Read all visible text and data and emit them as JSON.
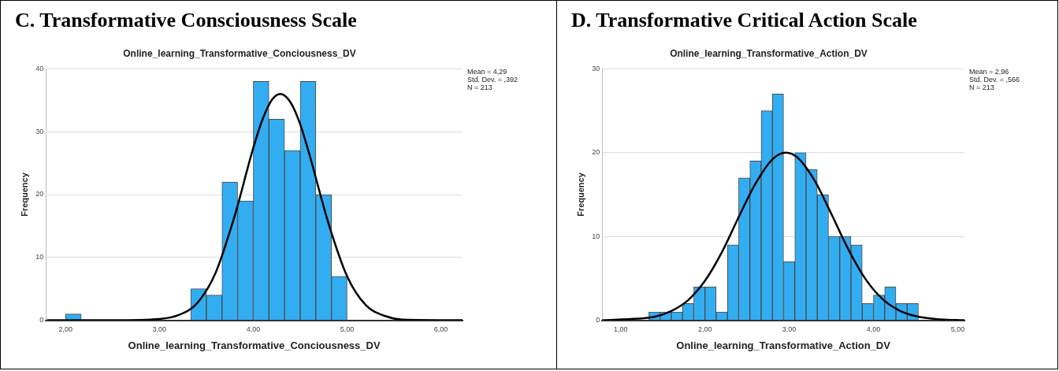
{
  "chart_data": [
    {
      "type": "histogram",
      "title": "C. Transformative Consciousness Scale",
      "subtitle": "Online_learning_Transformative_Conciousness_DV",
      "xlabel": "Online_learning_Transformative_Conciousness_DV",
      "ylabel": "Frequency",
      "series": [
        {
          "type": "histogram",
          "color": "#33adf2",
          "bins": [
            2,
            2.167,
            2.333,
            2.5,
            2.667,
            2.833,
            3,
            3.167,
            3.333,
            3.5,
            3.667,
            3.833,
            4,
            4.167,
            4.333,
            4.5,
            4.667,
            4.833,
            5
          ],
          "values": [
            1,
            0,
            0,
            0,
            0,
            0,
            0,
            0,
            5,
            4,
            22,
            19,
            38,
            32,
            27,
            38,
            20,
            7
          ]
        },
        {
          "type": "line",
          "color": "#000000",
          "x": [
            1.8,
            2.5,
            3.0,
            3.2,
            3.4,
            3.6,
            3.8,
            4.0,
            4.1,
            4.2,
            4.29,
            4.4,
            4.5,
            4.6,
            4.8,
            5.0,
            5.2,
            5.4,
            5.6,
            6.23
          ],
          "values": [
            0,
            0,
            0.2,
            0.8,
            2.7,
            7.6,
            16.5,
            27.4,
            32,
            35.1,
            36,
            34.6,
            31.2,
            26.3,
            15.5,
            7,
            2.4,
            0.7,
            0.1,
            0
          ]
        }
      ],
      "xlim": [
        1.79,
        6.23
      ],
      "xticks": [
        {
          "value": 2,
          "label": "2,00"
        },
        {
          "value": 3,
          "label": "3,00"
        },
        {
          "value": 4,
          "label": "4,00"
        },
        {
          "value": 5,
          "label": "5,00"
        },
        {
          "value": 6,
          "label": "6,00"
        }
      ],
      "ylim": [
        0,
        40
      ],
      "yticks": [
        0,
        10,
        20,
        30,
        40
      ],
      "grid": "y",
      "annotations": [
        "Mean = 4,29",
        "Std. Dev. = ,392",
        "N = 213"
      ]
    },
    {
      "type": "histogram",
      "title": "D. Transformative Critical Action Scale",
      "subtitle": "Online_learning_Transformative_Action_DV",
      "xlabel": "Online_learning_Transformative_Action_DV",
      "ylabel": "Frequency",
      "series": [
        {
          "type": "histogram",
          "color": "#33adf2",
          "bins": [
            1.333,
            1.467,
            1.6,
            1.733,
            1.867,
            2,
            2.133,
            2.267,
            2.4,
            2.533,
            2.667,
            2.8,
            2.933,
            3.067,
            3.2,
            3.333,
            3.467,
            3.6,
            3.733,
            3.867,
            4,
            4.133,
            4.267,
            4.4,
            4.533
          ],
          "values": [
            1,
            1,
            1,
            2,
            4,
            4,
            1,
            9,
            17,
            19,
            25,
            27,
            7,
            20,
            18,
            15,
            10,
            10,
            9,
            2,
            3,
            4,
            2,
            2
          ]
        },
        {
          "type": "line",
          "color": "#000000",
          "x": [
            0.78,
            1.2,
            1.4,
            1.6,
            1.8,
            2.0,
            2.2,
            2.4,
            2.6,
            2.8,
            2.96,
            3.1,
            3.3,
            3.5,
            3.7,
            3.9,
            4.1,
            4.3,
            4.5,
            4.8,
            5.08
          ],
          "values": [
            0,
            0.2,
            0.4,
            1.1,
            2.4,
            4.7,
            8.1,
            12.3,
            16.3,
            19.2,
            20,
            19.4,
            16.7,
            12.7,
            8.5,
            5,
            2.6,
            1.2,
            0.5,
            0.1,
            0
          ]
        }
      ],
      "xlim": [
        0.78,
        5.08
      ],
      "xticks": [
        {
          "value": 1,
          "label": "1,00"
        },
        {
          "value": 2,
          "label": "2,00"
        },
        {
          "value": 3,
          "label": "3,00"
        },
        {
          "value": 4,
          "label": "4,00"
        },
        {
          "value": 5,
          "label": "5,00"
        }
      ],
      "ylim": [
        0,
        30
      ],
      "yticks": [
        0,
        10,
        20,
        30
      ],
      "grid": "y",
      "annotations": [
        "Mean = 2,96",
        "Std. Dev. = ,566",
        "N = 213"
      ]
    }
  ]
}
